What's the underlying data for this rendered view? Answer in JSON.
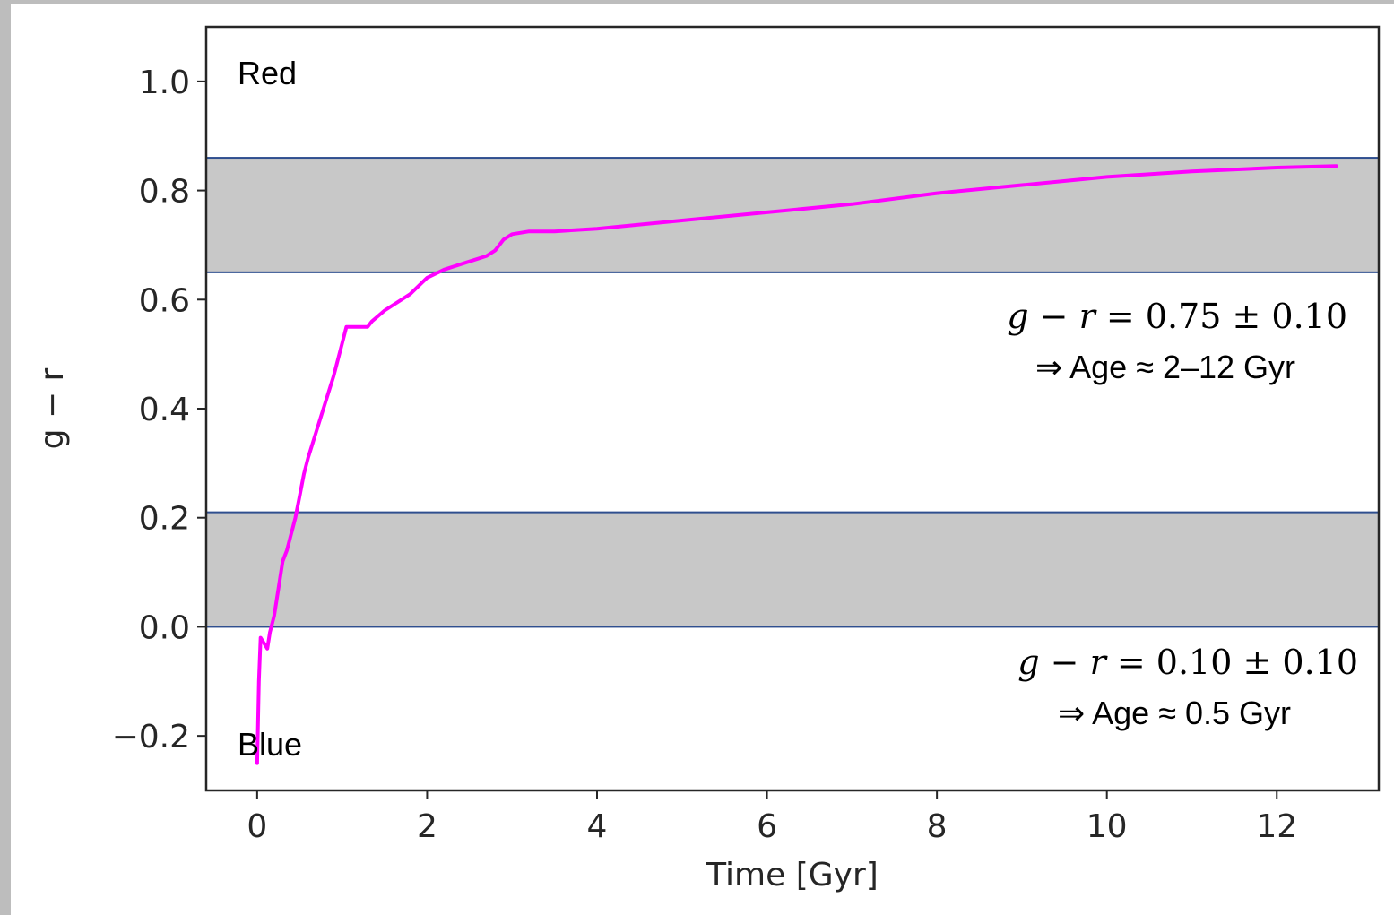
{
  "chart_data": {
    "type": "line",
    "xlabel": "Time [Gyr]",
    "ylabel": "g − r",
    "xlim": [
      -0.6,
      13.2
    ],
    "ylim": [
      -0.3,
      1.1
    ],
    "xticks": [
      0,
      2,
      4,
      6,
      8,
      10,
      12
    ],
    "xtick_labels": [
      "0",
      "2",
      "4",
      "6",
      "8",
      "10",
      "12"
    ],
    "yticks": [
      -0.2,
      0.0,
      0.2,
      0.4,
      0.6,
      0.8,
      1.0
    ],
    "ytick_labels": [
      "−0.2",
      "0.0",
      "0.2",
      "0.4",
      "0.6",
      "0.8",
      "1.0"
    ],
    "grid": false,
    "series": [
      {
        "color": "#ff00ff",
        "x": [
          0.0,
          0.01,
          0.02,
          0.04,
          0.08,
          0.12,
          0.15,
          0.2,
          0.25,
          0.3,
          0.35,
          0.45,
          0.5,
          0.55,
          0.6,
          0.7,
          0.8,
          0.9,
          1.0,
          1.05,
          1.1,
          1.2,
          1.3,
          1.35,
          1.5,
          1.8,
          2.0,
          2.2,
          2.5,
          2.7,
          2.8,
          2.9,
          3.0,
          3.2,
          3.5,
          4.0,
          5.0,
          6.0,
          7.0,
          8.0,
          9.0,
          10.0,
          11.0,
          12.0,
          12.7
        ],
        "y": [
          -0.25,
          -0.18,
          -0.1,
          -0.02,
          -0.03,
          -0.04,
          -0.01,
          0.02,
          0.07,
          0.12,
          0.14,
          0.2,
          0.24,
          0.28,
          0.31,
          0.36,
          0.41,
          0.46,
          0.52,
          0.55,
          0.55,
          0.55,
          0.55,
          0.56,
          0.58,
          0.61,
          0.64,
          0.655,
          0.67,
          0.68,
          0.69,
          0.71,
          0.72,
          0.725,
          0.725,
          0.73,
          0.745,
          0.76,
          0.775,
          0.795,
          0.81,
          0.825,
          0.835,
          0.842,
          0.845
        ]
      }
    ],
    "bands": [
      {
        "y0": 0.65,
        "y1": 0.86,
        "color": "#c8c8c8",
        "edge": "#2f4f8f"
      },
      {
        "y0": 0.0,
        "y1": 0.21,
        "color": "#c8c8c8",
        "edge": "#2f4f8f"
      }
    ],
    "annotations": {
      "red_label": "Red",
      "blue_label": "Blue",
      "band1_eq_lhs_g": "g",
      "band1_eq_lhs_r": "r",
      "band1_eq_rhs": "= 0.75 ± 0.10",
      "band1_age": "⇒ Age ≈ 2–12 Gyr",
      "band2_eq_lhs_g": "g",
      "band2_eq_lhs_r": "r",
      "band2_eq_rhs": "= 0.10 ± 0.10",
      "band2_age": "⇒ Age ≈ 0.5 Gyr"
    }
  }
}
